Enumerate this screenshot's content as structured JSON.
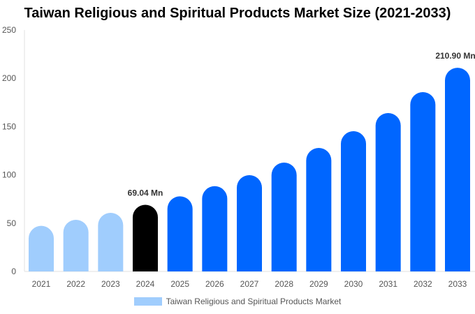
{
  "chart_data": {
    "type": "bar",
    "title": "Taiwan Religious and Spiritual Products Market Size (2021-2033)",
    "categories": [
      "2021",
      "2022",
      "2023",
      "2024",
      "2025",
      "2026",
      "2027",
      "2028",
      "2029",
      "2030",
      "2031",
      "2032",
      "2033"
    ],
    "series": [
      {
        "name": "Taiwan Religious and Spiritual Products Market",
        "values": [
          47.2,
          53.5,
          60.7,
          69.04,
          77.8,
          88.3,
          99.7,
          112.7,
          127.9,
          145.2,
          164.0,
          185.7,
          210.9
        ]
      }
    ],
    "data_labels": [
      {
        "category": "2024",
        "text": "69.04 Mn"
      },
      {
        "category": "2033",
        "text": "210.90 Mn"
      }
    ],
    "yticks": [
      "0",
      "50",
      "100",
      "150",
      "200",
      "250"
    ],
    "ylim": [
      0,
      250
    ],
    "xlabel": "",
    "ylabel": "",
    "grid": false,
    "legend_position": "bottom",
    "colors": {
      "historical": "#a0cdfd",
      "current": "#000000",
      "forecast": "#0066ff"
    }
  }
}
